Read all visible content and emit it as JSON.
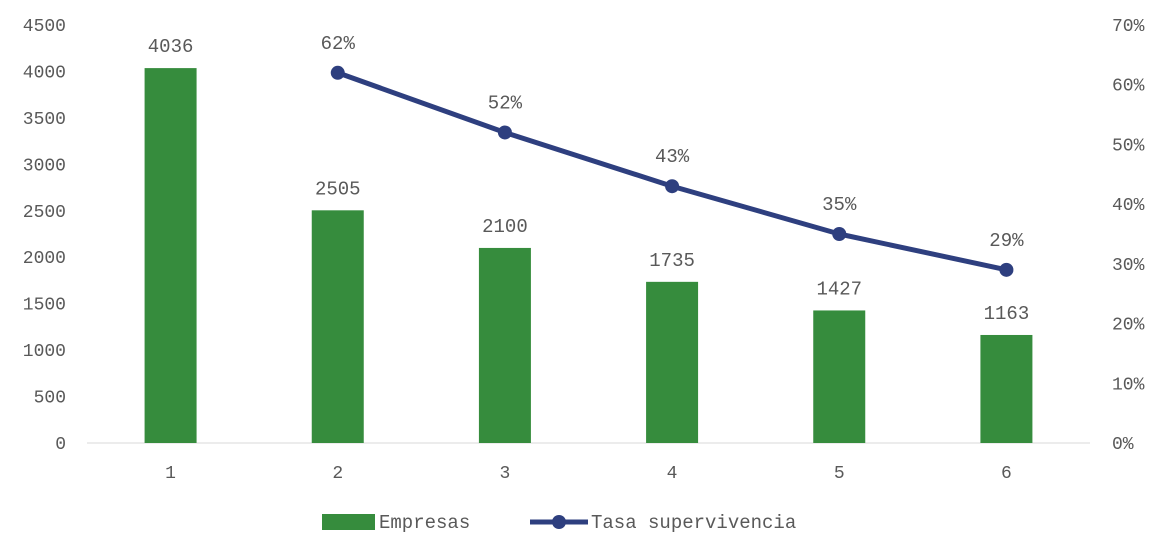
{
  "chart_data": {
    "type": "bar",
    "categories": [
      "1",
      "2",
      "3",
      "4",
      "5",
      "6"
    ],
    "series": [
      {
        "name": "Empresas",
        "type": "bar",
        "axis": "left",
        "values": [
          4036,
          2505,
          2100,
          1735,
          1427,
          1163
        ],
        "labels": [
          "4036",
          "2505",
          "2100",
          "1735",
          "1427",
          "1163"
        ],
        "color": "#368C3D"
      },
      {
        "name": "Tasa supervivencia",
        "type": "line",
        "axis": "right",
        "values": [
          null,
          62,
          52,
          43,
          35,
          29
        ],
        "labels": [
          "",
          "62%",
          "52%",
          "43%",
          "35%",
          "29%"
        ],
        "color": "#2E3F7F"
      }
    ],
    "y_left": {
      "ylim": [
        0,
        4500
      ],
      "ticks": [
        "0",
        "500",
        "1000",
        "1500",
        "2000",
        "2500",
        "3000",
        "3500",
        "4000",
        "4500"
      ]
    },
    "y_right": {
      "ylim": [
        0,
        70
      ],
      "ticks": [
        "0%",
        "10%",
        "20%",
        "30%",
        "40%",
        "50%",
        "60%",
        "70%"
      ]
    },
    "grid": false,
    "legend": "bottom-center"
  }
}
